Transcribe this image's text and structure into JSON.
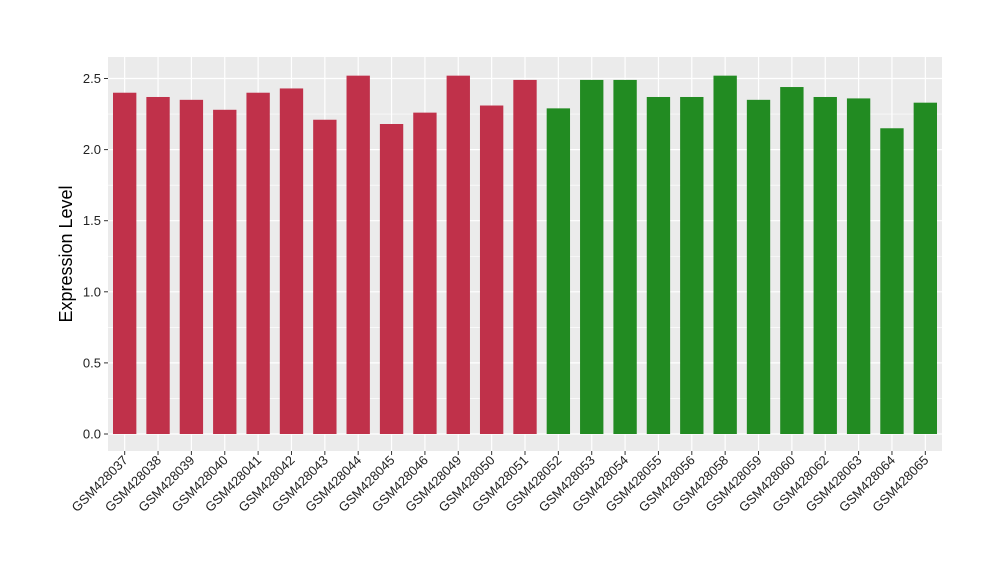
{
  "chart_data": {
    "type": "bar",
    "ylabel": "Expression Level",
    "xlabel": "",
    "ylim": [
      0,
      2.64
    ],
    "yticks": [
      0.0,
      0.5,
      1.0,
      1.5,
      2.0,
      2.5
    ],
    "ytick_labels": [
      "0.0",
      "0.5",
      "1.0",
      "1.5",
      "2.0",
      "2.5"
    ],
    "grid": true,
    "legend": "none",
    "colors": {
      "group1": "#c0314a",
      "group2": "#228b22",
      "panel": "#ebebeb",
      "grid_major": "#ffffff",
      "text": "#222222"
    },
    "categories": [
      "GSM428037",
      "GSM428038",
      "GSM428039",
      "GSM428040",
      "GSM428041",
      "GSM428042",
      "GSM428043",
      "GSM428044",
      "GSM428045",
      "GSM428046",
      "GSM428049",
      "GSM428050",
      "GSM428051",
      "GSM428052",
      "GSM428053",
      "GSM428054",
      "GSM428055",
      "GSM428056",
      "GSM428058",
      "GSM428059",
      "GSM428060",
      "GSM428062",
      "GSM428063",
      "GSM428064",
      "GSM428065"
    ],
    "values": [
      2.4,
      2.37,
      2.35,
      2.28,
      2.4,
      2.43,
      2.21,
      2.52,
      2.18,
      2.26,
      2.52,
      2.31,
      2.49,
      2.29,
      2.49,
      2.49,
      2.37,
      2.37,
      2.52,
      2.35,
      2.44,
      2.37,
      2.36,
      2.15,
      2.33
    ],
    "groups": [
      "group1",
      "group1",
      "group1",
      "group1",
      "group1",
      "group1",
      "group1",
      "group1",
      "group1",
      "group1",
      "group1",
      "group1",
      "group1",
      "group2",
      "group2",
      "group2",
      "group2",
      "group2",
      "group2",
      "group2",
      "group2",
      "group2",
      "group2",
      "group2",
      "group2"
    ]
  }
}
